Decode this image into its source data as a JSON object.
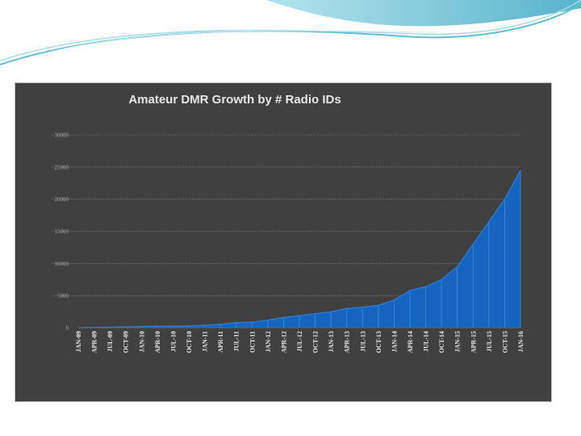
{
  "chart_data": {
    "type": "area",
    "title": "Amateur DMR Growth by # Radio IDs",
    "xlabel": "",
    "ylabel": "",
    "ylim": [
      0,
      30000
    ],
    "y_ticks": [
      "0",
      "5000",
      "10000",
      "15000",
      "20000",
      "25000",
      "30000"
    ],
    "grid": true,
    "legend": "none",
    "colors": {
      "area": "#1565c0",
      "background": "#404040",
      "grid": "#8a8a8a"
    },
    "categories": [
      "JAN-09",
      "APR-09",
      "JUL-09",
      "OCT-09",
      "JAN-10",
      "APR-10",
      "JUL-10",
      "OCT-10",
      "JAN-11",
      "APR-11",
      "JUL-11",
      "OCT-11",
      "JAN-12",
      "APR-12",
      "JUL-12",
      "OCT-12",
      "JAN-13",
      "APR-13",
      "JUL-13",
      "OCT-13",
      "JAN-14",
      "APR-14",
      "JUL-14",
      "OCT-14",
      "JAN-15",
      "APR-15",
      "JUL-15",
      "OCT-15",
      "JAN-16"
    ],
    "values": [
      0,
      60,
      100,
      150,
      200,
      250,
      250,
      300,
      400,
      550,
      800,
      900,
      1200,
      1600,
      1900,
      2200,
      2500,
      3000,
      3200,
      3500,
      4300,
      5800,
      6400,
      7500,
      9500,
      13000,
      16500,
      20000,
      24500
    ]
  }
}
